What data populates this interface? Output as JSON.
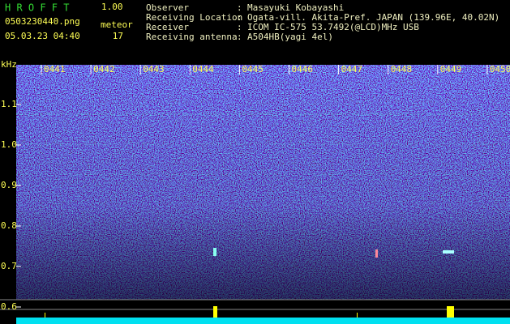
{
  "header": {
    "app_name": "H R O F F T",
    "version": "1.00",
    "file_name": "0503230440.png",
    "timestamp": "05.03.23 04:40",
    "meteor_label": "meteor",
    "meteor_count": "17"
  },
  "info": [
    {
      "label": "Observer",
      "value": "Masayuki Kobayashi"
    },
    {
      "label": "Receiving Location",
      "value": "Ogata-vill. Akita-Pref. JAPAN (139.96E, 40.02N)"
    },
    {
      "label": "Receiver",
      "value": "ICOM IC-575 53.7492(@LCD)MHz USB"
    },
    {
      "label": "Receiving antenna",
      "value": "A504HB(yagi 4el)"
    }
  ],
  "separator": ":",
  "spectrogram": {
    "y_unit": "kHz",
    "y_labels": [
      "1.1",
      "1.0",
      "0.9",
      "0.8",
      "0.7",
      "0.6"
    ],
    "time_labels": [
      "0441",
      "0442",
      "0443",
      "0444",
      "0445",
      "0446",
      "0447",
      "0448",
      "0449",
      "0450"
    ]
  }
}
